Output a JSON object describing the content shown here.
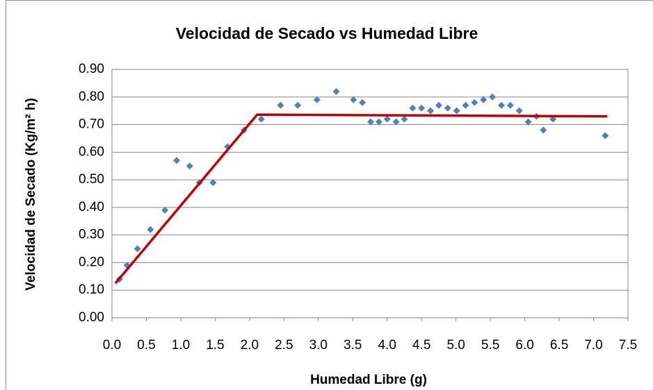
{
  "chart_data": {
    "type": "scatter",
    "title": "Velocidad de Secado vs Humedad Libre",
    "x_label": "Humedad Libre (g)",
    "y_label": "Velocidad de Secado (Kg/m² h)",
    "xlim": [
      0,
      7.5
    ],
    "ylim": [
      0,
      0.9
    ],
    "xticks": [
      {
        "value": 0,
        "label": "0.0"
      },
      0.5,
      {
        "value": 1,
        "label": "1.0"
      },
      1.5,
      {
        "value": 2,
        "label": "2.0"
      },
      2.5,
      {
        "value": 3,
        "label": "3.0"
      },
      3.5,
      {
        "value": 4,
        "label": "4.0"
      },
      4.5,
      {
        "value": 5,
        "label": "5.0"
      },
      5.5,
      {
        "value": 6,
        "label": "6.0"
      },
      6.5,
      {
        "value": 7,
        "label": "7.0"
      },
      7.5
    ],
    "yticks": [
      {
        "value": 0,
        "label": "0.00"
      },
      {
        "value": 0.1,
        "label": "0.10"
      },
      {
        "value": 0.2,
        "label": "0.20"
      },
      {
        "value": 0.3,
        "label": "0.30"
      },
      {
        "value": 0.4,
        "label": "0.40"
      },
      {
        "value": 0.5,
        "label": "0.50"
      },
      {
        "value": 0.6,
        "label": "0.60"
      },
      {
        "value": 0.7,
        "label": "0.70"
      },
      {
        "value": 0.8,
        "label": "0.80"
      },
      {
        "value": 0.9,
        "label": "0.90"
      }
    ],
    "grid": true,
    "series": [
      {
        "type": "scatter",
        "color": "#4f81bd",
        "x": [
          0.11,
          0.22,
          0.37,
          0.56,
          0.77,
          0.94,
          1.13,
          1.27,
          1.47,
          1.68,
          1.92,
          2.17,
          2.45,
          2.7,
          2.98,
          3.26,
          3.51,
          3.64,
          3.76,
          3.88,
          4.0,
          4.13,
          4.25,
          4.37,
          4.5,
          4.63,
          4.75,
          4.88,
          5.01,
          5.14,
          5.27,
          5.4,
          5.53,
          5.66,
          5.79,
          5.92,
          6.05,
          6.17,
          6.27,
          6.41,
          7.17
        ],
        "values": [
          0.14,
          0.19,
          0.25,
          0.32,
          0.39,
          0.57,
          0.55,
          0.49,
          0.49,
          0.62,
          0.68,
          0.72,
          0.77,
          0.77,
          0.79,
          0.82,
          0.79,
          0.78,
          0.71,
          0.71,
          0.72,
          0.71,
          0.72,
          0.76,
          0.76,
          0.75,
          0.77,
          0.76,
          0.75,
          0.77,
          0.78,
          0.79,
          0.8,
          0.77,
          0.77,
          0.75,
          0.71,
          0.73,
          0.68,
          0.72,
          0.66
        ]
      },
      {
        "type": "line",
        "color": "#c00000",
        "x": [
          0.05,
          2.11,
          7.2
        ],
        "values": [
          0.125,
          0.736,
          0.73
        ]
      }
    ]
  }
}
